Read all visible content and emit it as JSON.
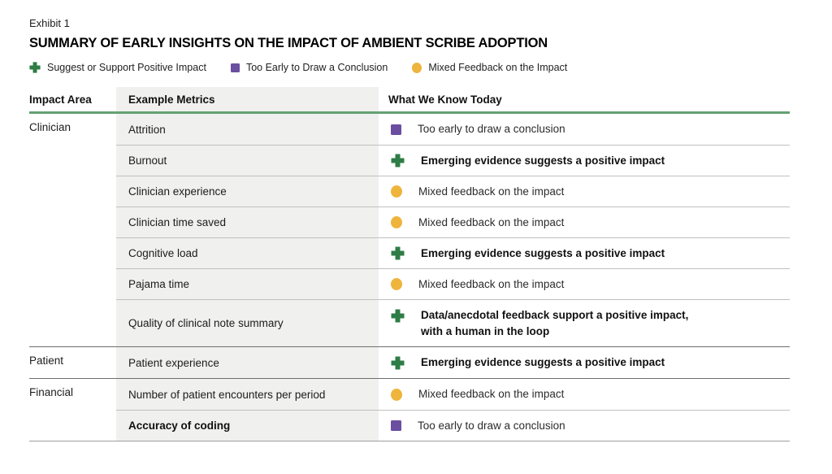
{
  "exhibit": {
    "label": "Exhibit 1",
    "title": "SUMMARY OF EARLY INSIGHTS ON THE IMPACT OF AMBIENT SCRIBE ADOPTION"
  },
  "legend": [
    {
      "icon": "positive-impact-plus-icon",
      "status": "positive",
      "label": "Suggest or Support Positive Impact"
    },
    {
      "icon": "too-early-square-icon",
      "status": "too-early",
      "label": "Too Early to Draw a Conclusion"
    },
    {
      "icon": "mixed-feedback-circle-icon",
      "status": "mixed",
      "label": "Mixed Feedback on the Impact"
    }
  ],
  "table": {
    "columns": [
      "Impact Area",
      "Example Metrics",
      "What We Know Today"
    ],
    "groups": [
      {
        "area": "Clinician",
        "rows": [
          {
            "metric": "Attrition",
            "status": "too-early",
            "text": "Too early to draw a conclusion",
            "bold": false,
            "metric_bold": false
          },
          {
            "metric": "Burnout",
            "status": "positive",
            "text": "Emerging evidence suggests a positive impact",
            "bold": true,
            "metric_bold": false
          },
          {
            "metric": "Clinician experience",
            "status": "mixed",
            "text": "Mixed feedback on the impact",
            "bold": false,
            "metric_bold": false
          },
          {
            "metric": "Clinician time saved",
            "status": "mixed",
            "text": "Mixed feedback on the impact",
            "bold": false,
            "metric_bold": false
          },
          {
            "metric": "Cognitive load",
            "status": "positive",
            "text": "Emerging evidence suggests a positive impact",
            "bold": true,
            "metric_bold": false
          },
          {
            "metric": "Pajama time",
            "status": "mixed",
            "text": "Mixed feedback on the impact",
            "bold": false,
            "metric_bold": false
          },
          {
            "metric": "Quality of clinical note summary",
            "status": "positive",
            "text": "Data/anecdotal feedback support a positive impact,\nwith a human in the loop",
            "bold": true,
            "metric_bold": false
          }
        ]
      },
      {
        "area": "Patient",
        "rows": [
          {
            "metric": "Patient experience",
            "status": "positive",
            "text": "Emerging evidence suggests a positive impact",
            "bold": true,
            "metric_bold": false
          }
        ]
      },
      {
        "area": "Financial",
        "rows": [
          {
            "metric": "Number of patient encounters per period",
            "status": "mixed",
            "text": "Mixed feedback on the impact",
            "bold": false,
            "metric_bold": false
          },
          {
            "metric": "Accuracy of coding",
            "status": "too-early",
            "text": "Too early to draw a conclusion",
            "bold": false,
            "metric_bold": true
          }
        ]
      }
    ]
  },
  "colors": {
    "positive": "#2e7d46",
    "too-early": "#6b4e9f",
    "mixed": "#eeb43c",
    "rule-green": "#63a174",
    "row-divider": "#c0c0c0",
    "group-divider": "#6e6e6e",
    "table-bottom": "#9e9e9e",
    "metric-bg": "#f0f0ee",
    "text": "#1f1f1f"
  },
  "chart_data": {
    "type": "table",
    "title": "SUMMARY OF EARLY INSIGHTS ON THE IMPACT OF AMBIENT SCRIBE ADOPTION",
    "columns": [
      "Impact Area",
      "Example Metrics",
      "What We Know Today"
    ],
    "rows": [
      [
        "Clinician",
        "Attrition",
        "Too early to draw a conclusion"
      ],
      [
        "Clinician",
        "Burnout",
        "Emerging evidence suggests a positive impact"
      ],
      [
        "Clinician",
        "Clinician experience",
        "Mixed feedback on the impact"
      ],
      [
        "Clinician",
        "Clinician time saved",
        "Mixed feedback on the impact"
      ],
      [
        "Clinician",
        "Cognitive load",
        "Emerging evidence suggests a positive impact"
      ],
      [
        "Clinician",
        "Pajama time",
        "Mixed feedback on the impact"
      ],
      [
        "Clinician",
        "Quality of clinical note summary",
        "Data/anecdotal feedback support a positive impact, with a human in the loop"
      ],
      [
        "Patient",
        "Patient experience",
        "Emerging evidence suggests a positive impact"
      ],
      [
        "Financial",
        "Number of patient encounters per period",
        "Mixed feedback on the impact"
      ],
      [
        "Financial",
        "Accuracy of coding",
        "Too early to draw a conclusion"
      ]
    ],
    "legend_entries": [
      "Suggest or Support Positive Impact",
      "Too Early to Draw a Conclusion",
      "Mixed Feedback on the Impact"
    ],
    "legend_position": "top-left"
  }
}
